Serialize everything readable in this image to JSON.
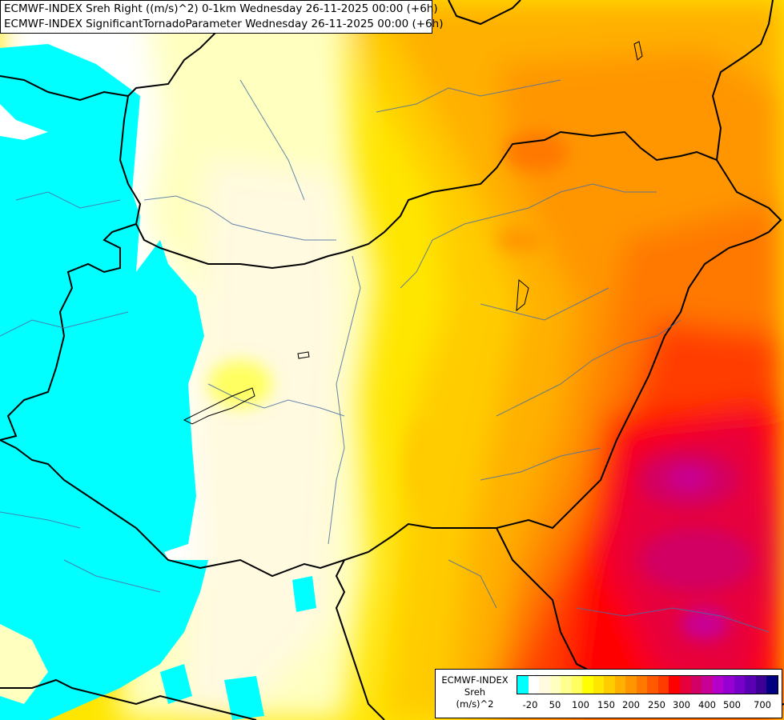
{
  "title": {
    "line1": "ECMWF-INDEX Sreh Right ((m/s)^2) 0-1km Wednesday 26-11-2025 00:00 (+6h)",
    "line2": "ECMWF-INDEX SignificantTornadoParameter Wednesday 26-11-2025 00:00 (+6h)"
  },
  "legend": {
    "title1": "ECMWF-INDEX",
    "title2": "Sreh",
    "title3": "(m/s)^2",
    "colors": [
      "#00ffff",
      "#ffffff",
      "#fffae0",
      "#ffffc0",
      "#ffff90",
      "#ffff60",
      "#ffff00",
      "#ffe600",
      "#ffcc00",
      "#ffb000",
      "#ff9600",
      "#ff7800",
      "#ff5a00",
      "#ff3c00",
      "#ff0000",
      "#e6003c",
      "#d20064",
      "#c80096",
      "#b400c8",
      "#9600d2",
      "#7800c8",
      "#5a00b4",
      "#3c0096",
      "#000080"
    ],
    "ticks": [
      "-20",
      "50",
      "100",
      "150",
      "200",
      "250",
      "300",
      "400",
      "500",
      "700"
    ]
  }
}
